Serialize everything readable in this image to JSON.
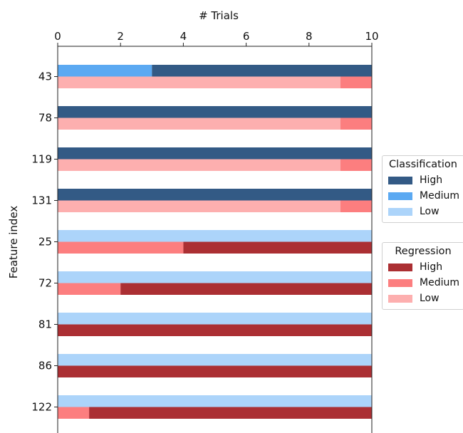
{
  "chart_data": {
    "type": "bar",
    "orientation": "horizontal-stacked",
    "title": "",
    "xlabel": "# Trials",
    "ylabel": "Feature index",
    "xlim": [
      0,
      10
    ],
    "x_ticks": [
      "0",
      "2",
      "4",
      "6",
      "8",
      "10"
    ],
    "x_axis_position": "top",
    "grid": false,
    "categories": [
      "43",
      "78",
      "119",
      "131",
      "25",
      "72",
      "81",
      "86",
      "122"
    ],
    "groups": [
      {
        "name": "Classification",
        "series": [
          {
            "name": "High",
            "color": "#335a85",
            "values": [
              7,
              10,
              10,
              10,
              0,
              0,
              0,
              0,
              0
            ]
          },
          {
            "name": "Medium",
            "color": "#5ba9f2",
            "values": [
              3,
              0,
              0,
              0,
              0,
              0,
              0,
              0,
              0
            ]
          },
          {
            "name": "Low",
            "color": "#acd4fa",
            "values": [
              0,
              0,
              0,
              0,
              10,
              10,
              10,
              10,
              10
            ]
          }
        ]
      },
      {
        "name": "Regression",
        "series": [
          {
            "name": "High",
            "color": "#ab2f33",
            "values": [
              0,
              0,
              0,
              0,
              6,
              8,
              10,
              10,
              9
            ]
          },
          {
            "name": "Medium",
            "color": "#fc7e7f",
            "values": [
              1,
              1,
              1,
              1,
              4,
              2,
              0,
              0,
              1
            ]
          },
          {
            "name": "Low",
            "color": "#fdafaf",
            "values": [
              9,
              9,
              9,
              9,
              0,
              0,
              0,
              0,
              0
            ]
          }
        ]
      }
    ],
    "stack_order": {
      "Classification": [
        "Medium",
        "Low",
        "High"
      ],
      "Regression": [
        "Low",
        "Medium",
        "High"
      ]
    },
    "legend_placement": "right"
  }
}
